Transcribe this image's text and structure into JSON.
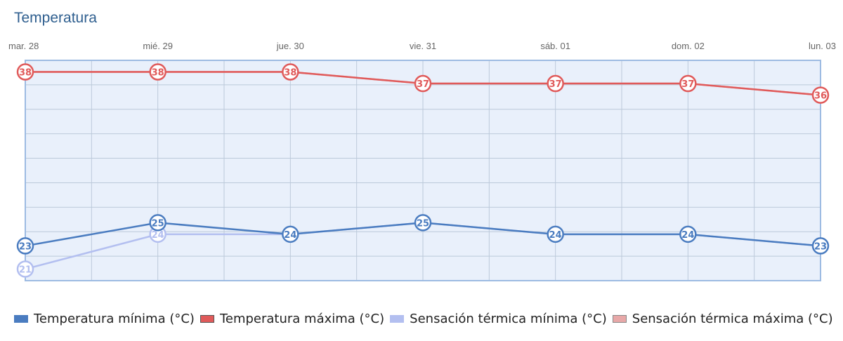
{
  "header": {
    "title": "Temperatura"
  },
  "chart_data": {
    "type": "line",
    "title": "Temperatura",
    "categories": [
      "mar. 28",
      "mié. 29",
      "jue. 30",
      "vie. 31",
      "sáb. 01",
      "dom. 02",
      "lun. 03"
    ],
    "ylim": [
      20,
      39
    ],
    "grid": true,
    "legend_position": "bottom-left",
    "series": [
      {
        "name": "Temperatura mínima (°C)",
        "values": [
          23,
          25,
          24,
          25,
          24,
          24,
          23
        ],
        "color": "#4a7cc0",
        "labelled": true
      },
      {
        "name": "Temperatura máxima (°C)",
        "values": [
          38,
          38,
          38,
          37,
          37,
          37,
          36
        ],
        "color": "#e05a5a",
        "labelled": true
      },
      {
        "name": "Sensación térmica mínima (°C)",
        "values": [
          21,
          24,
          24,
          25,
          24,
          24,
          23
        ],
        "color": "#b3bff0",
        "labelled": false,
        "labelled_points": [
          0,
          1
        ]
      },
      {
        "name": "Sensación térmica máxima (°C)",
        "values": [
          38,
          38,
          38,
          37,
          37,
          37,
          36
        ],
        "color": "#e8a8a8",
        "labelled": false
      }
    ]
  }
}
